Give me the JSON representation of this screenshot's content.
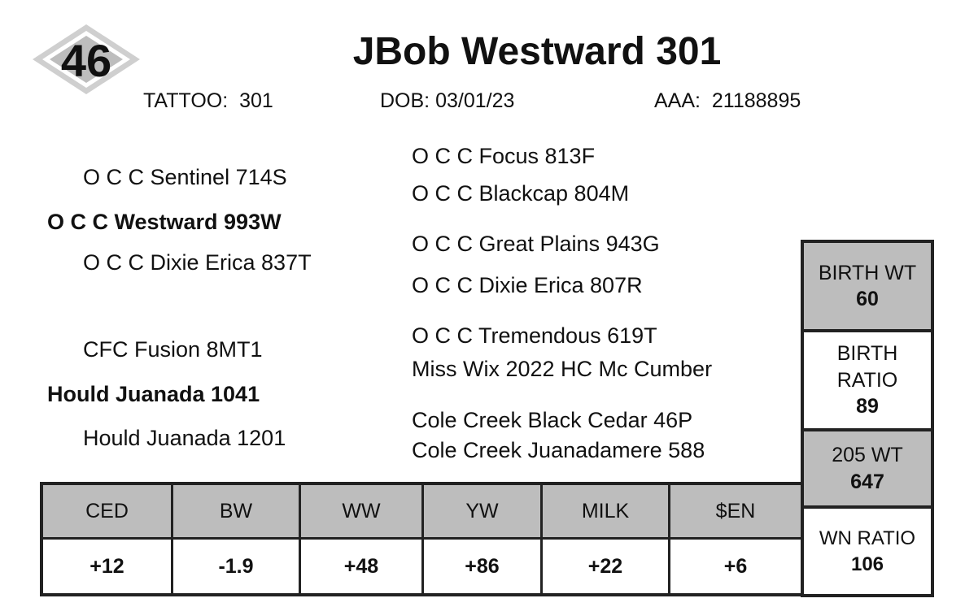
{
  "lot": "46",
  "title": "JBob Westward 301",
  "info": [
    {
      "label": "TATTOO:",
      "value": "301"
    },
    {
      "label": "DOB:",
      "value": "03/01/23"
    },
    {
      "label": "AAA:",
      "value": "21188895"
    }
  ],
  "pedigree": {
    "sire": "O C C Westward 993W",
    "sire_sire": "O C C Sentinel 714S",
    "sire_dam": "O C C Dixie Erica 837T",
    "dam": "Hould Juanada 1041",
    "dam_sire": "CFC Fusion 8MT1",
    "dam_dam": "Hould Juanada 1201",
    "third_gen": [
      "O C C Focus 813F",
      "O C C Blackcap 804M",
      "O C C Great Plains 943G",
      "O C C Dixie Erica 807R",
      "O C C Tremendous 619T",
      "Miss Wix 2022 HC Mc Cumber",
      "Cole Creek Black Cedar 46P",
      "Cole Creek Juanadamere 588"
    ]
  },
  "performance": [
    {
      "label": "BIRTH WT",
      "value": 60
    },
    {
      "label": "BIRTH RATIO",
      "value": 89
    },
    {
      "label": "205 WT",
      "value": 647
    },
    {
      "label": "WN RATIO",
      "value": 106
    }
  ],
  "epd": {
    "headers": [
      "CED",
      "BW",
      "WW",
      "YW",
      "MILK",
      "$EN"
    ],
    "values": [
      "+12",
      "-1.9",
      "+48",
      "+86",
      "+22",
      "+6"
    ]
  }
}
